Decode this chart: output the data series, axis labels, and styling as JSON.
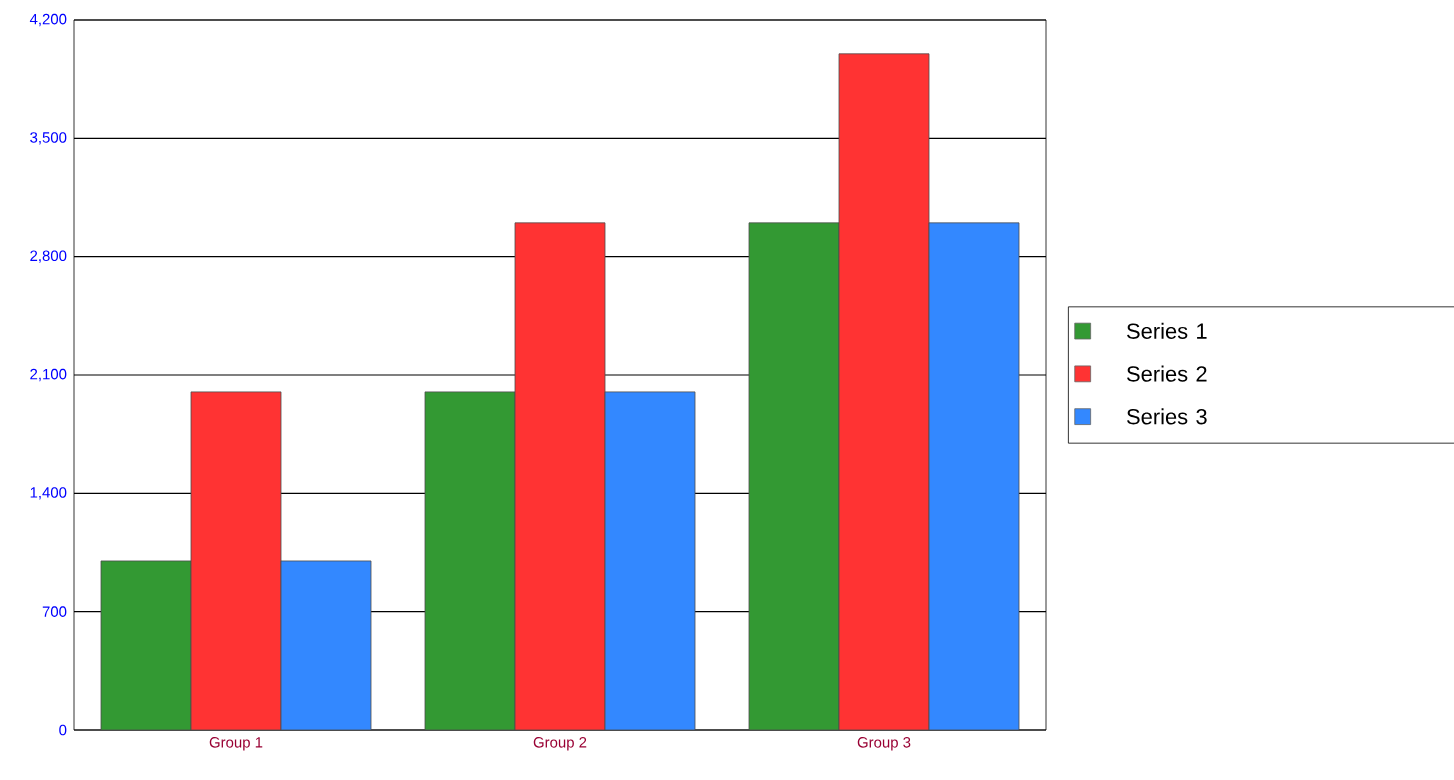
{
  "chart_data": {
    "type": "bar",
    "categories": [
      "Group 1",
      "Group 2",
      "Group 3"
    ],
    "series": [
      {
        "name": "Series 1",
        "color": "#339933",
        "values": [
          1000,
          2000,
          3000
        ]
      },
      {
        "name": "Series 2",
        "color": "#ff3333",
        "values": [
          2000,
          3000,
          4000
        ]
      },
      {
        "name": "Series 3",
        "color": "#3388ff",
        "values": [
          1000,
          2000,
          3000
        ]
      }
    ],
    "ylim": [
      0,
      4200
    ],
    "yticks": [
      0,
      700,
      {
        "value": 1400,
        "label": "1,400"
      },
      {
        "value": 2100,
        "label": "2,100"
      },
      {
        "value": 2800,
        "label": "2,800"
      },
      {
        "value": 3500,
        "label": "3,500"
      },
      {
        "value": 4200,
        "label": "4,200"
      }
    ],
    "grid": "y",
    "legend": "right"
  }
}
